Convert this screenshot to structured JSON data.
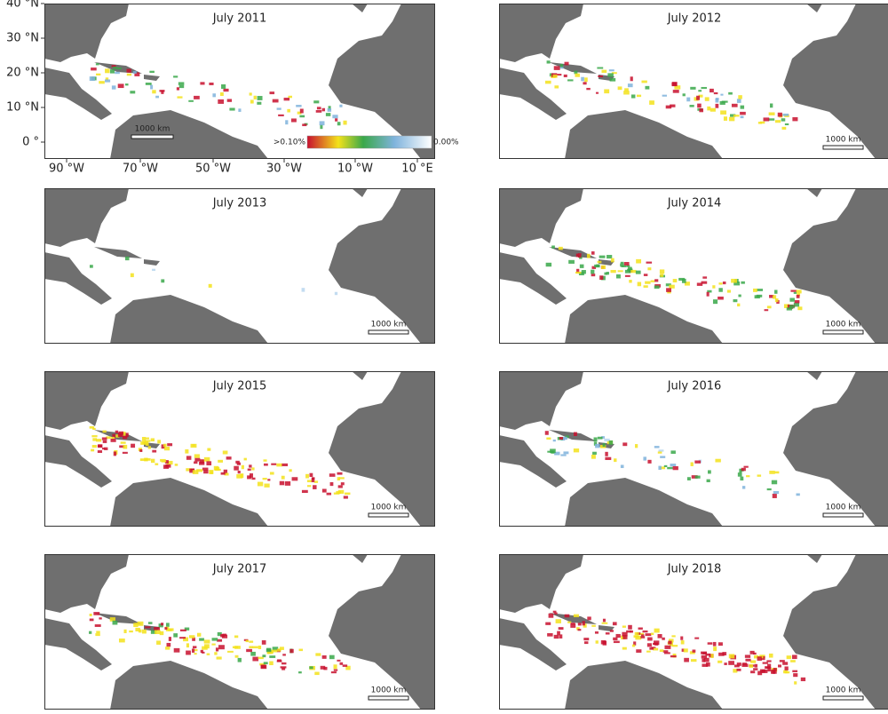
{
  "panels": [
    {
      "title": "July 2011",
      "scale_label": "1000 km"
    },
    {
      "title": "July 2012",
      "scale_label": "1000 km"
    },
    {
      "title": "July 2013",
      "scale_label": "1000 km"
    },
    {
      "title": "July 2014",
      "scale_label": "1000 km"
    },
    {
      "title": "July 2015",
      "scale_label": "1000 km"
    },
    {
      "title": "July 2016",
      "scale_label": "1000 km"
    },
    {
      "title": "July 2017",
      "scale_label": "1000 km"
    },
    {
      "title": "July 2018",
      "scale_label": "1000 km"
    }
  ],
  "axes": {
    "y_labels": [
      "40 °N",
      "30 °N",
      "20 °N",
      "10 °N",
      "0 °"
    ],
    "x_labels": [
      "90 °W",
      "70 °W",
      "50 °W",
      "30 °W",
      "10 °W",
      "10 °E"
    ]
  },
  "legend": {
    "high_label": ">0.10%",
    "low_label": "0.00%"
  }
}
